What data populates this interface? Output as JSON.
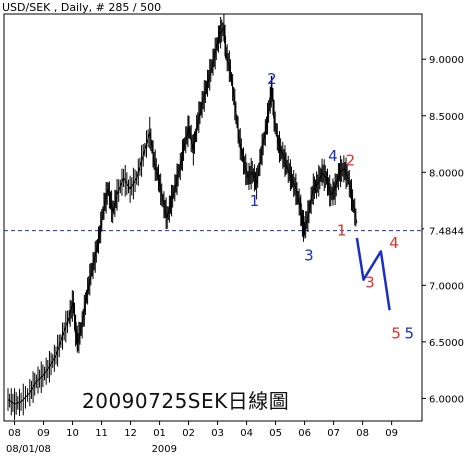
{
  "header": {
    "title": "USD/SEK , Daily, # 285 / 500"
  },
  "watermark": "20090725SEK日線圖",
  "chart_data": {
    "type": "ohlc-line",
    "title": "USD/SEK , Daily, # 285 / 500",
    "ylim": [
      5.8,
      9.4
    ],
    "yticks": [
      "6.0000",
      "6.5000",
      "7.0000",
      "7.5000",
      "8.0000",
      "8.5000",
      "9.0000"
    ],
    "ytick_values": [
      6.0,
      6.5,
      7.0,
      7.5,
      8.0,
      8.5,
      9.0
    ],
    "current_price_label": "7.4844",
    "current_price": 7.4844,
    "x_tick_labels": [
      "08",
      "09",
      "10",
      "11",
      "12",
      "01",
      "02",
      "03",
      "04",
      "05",
      "06",
      "07",
      "08",
      "09"
    ],
    "x_sub_labels": {
      "08/01/08": 0,
      "2009": 5
    },
    "grid": false,
    "series": [
      {
        "values": [
          [
            0.0,
            5.99
          ],
          [
            0.3,
            5.95
          ],
          [
            0.6,
            5.97
          ],
          [
            1.0,
            6.05
          ],
          [
            1.3,
            6.15
          ],
          [
            1.6,
            6.2
          ],
          [
            1.9,
            6.28
          ],
          [
            2.2,
            6.38
          ],
          [
            2.5,
            6.55
          ],
          [
            2.8,
            6.72
          ],
          [
            3.0,
            6.85
          ],
          [
            3.1,
            6.6
          ],
          [
            3.2,
            6.5
          ],
          [
            3.4,
            6.65
          ],
          [
            3.6,
            6.9
          ],
          [
            3.8,
            7.1
          ],
          [
            4.0,
            7.25
          ],
          [
            4.2,
            7.45
          ],
          [
            4.4,
            7.7
          ],
          [
            4.6,
            7.85
          ],
          [
            4.8,
            7.65
          ],
          [
            5.0,
            7.8
          ],
          [
            5.3,
            7.95
          ],
          [
            5.6,
            7.85
          ],
          [
            5.9,
            7.95
          ],
          [
            6.2,
            8.15
          ],
          [
            6.5,
            8.35
          ],
          [
            6.7,
            8.1
          ],
          [
            6.9,
            7.95
          ],
          [
            7.1,
            7.75
          ],
          [
            7.3,
            7.6
          ],
          [
            7.5,
            7.75
          ],
          [
            7.7,
            7.9
          ],
          [
            7.9,
            8.05
          ],
          [
            8.1,
            8.25
          ],
          [
            8.3,
            8.4
          ],
          [
            8.5,
            8.2
          ],
          [
            8.7,
            8.45
          ],
          [
            8.9,
            8.6
          ],
          [
            9.1,
            8.75
          ],
          [
            9.3,
            8.9
          ],
          [
            9.5,
            9.05
          ],
          [
            9.7,
            9.22
          ],
          [
            9.9,
            9.28
          ],
          [
            10.0,
            9.05
          ],
          [
            10.2,
            8.9
          ],
          [
            10.4,
            8.6
          ],
          [
            10.6,
            8.3
          ],
          [
            10.8,
            8.1
          ],
          [
            11.0,
            7.95
          ],
          [
            11.2,
            8.0
          ],
          [
            11.4,
            7.9
          ],
          [
            11.6,
            8.15
          ],
          [
            11.8,
            8.35
          ],
          [
            12.0,
            8.6
          ],
          [
            12.1,
            8.75
          ],
          [
            12.2,
            8.5
          ],
          [
            12.4,
            8.25
          ],
          [
            12.6,
            8.15
          ],
          [
            12.8,
            8.05
          ],
          [
            13.0,
            7.95
          ],
          [
            13.2,
            7.85
          ],
          [
            13.4,
            7.7
          ],
          [
            13.5,
            7.55
          ],
          [
            13.6,
            7.5
          ],
          [
            13.8,
            7.65
          ],
          [
            14.0,
            7.85
          ],
          [
            14.2,
            7.9
          ],
          [
            14.4,
            8.0
          ],
          [
            14.6,
            7.95
          ],
          [
            14.8,
            7.8
          ],
          [
            15.0,
            7.85
          ],
          [
            15.2,
            8.0
          ],
          [
            15.4,
            8.03
          ],
          [
            15.6,
            7.95
          ],
          [
            15.8,
            7.75
          ],
          [
            16.0,
            7.55
          ]
        ]
      },
      {
        "name": "projection",
        "values": [
          [
            16.0,
            7.42
          ],
          [
            16.3,
            7.05
          ],
          [
            17.1,
            7.3
          ],
          [
            17.5,
            6.78
          ]
        ]
      }
    ],
    "annotations": [
      {
        "text": "1",
        "x": 11.3,
        "y": 7.7,
        "color": "#1a2fc4"
      },
      {
        "text": "2",
        "x": 12.1,
        "y": 8.78,
        "color": "#1a2fc4"
      },
      {
        "text": "3",
        "x": 13.8,
        "y": 7.22,
        "color": "#1a2fc4"
      },
      {
        "text": "4",
        "x": 14.9,
        "y": 8.1,
        "color": "#1a2fc4"
      },
      {
        "text": "1",
        "x": 15.3,
        "y": 7.44,
        "color": "#e0322b"
      },
      {
        "text": "2",
        "x": 15.7,
        "y": 8.06,
        "color": "#e0322b"
      },
      {
        "text": "3",
        "x": 16.6,
        "y": 6.98,
        "color": "#e0322b"
      },
      {
        "text": "4",
        "x": 17.7,
        "y": 7.33,
        "color": "#e0322b"
      },
      {
        "text": "5",
        "x": 17.8,
        "y": 6.53,
        "color": "#e0322b"
      },
      {
        "text": "5",
        "x": 18.4,
        "y": 6.53,
        "color": "#1a2fc4"
      }
    ],
    "colors": {
      "price": "#000000",
      "projection": "#1a2fc4",
      "reference": "#1a2fc4"
    }
  }
}
